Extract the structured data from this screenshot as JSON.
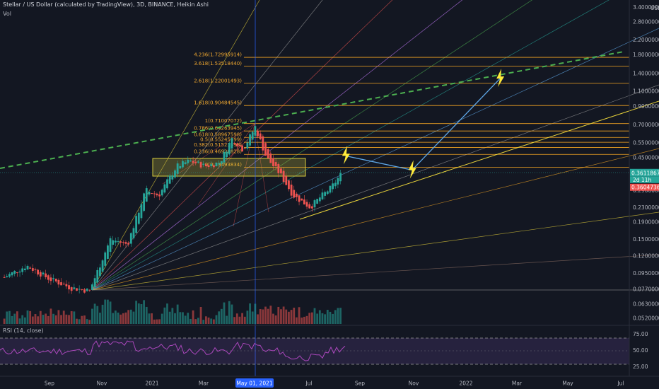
{
  "header": {
    "symbol_line": "Stellar / US Dollar (calculated by TradingView), 3D, BINANCE, Heikin Ashi",
    "indicator_vol": "Vol",
    "rsi_label": "RSI (14, close)"
  },
  "colors": {
    "background": "#131722",
    "bull": "#26a69a",
    "bear": "#ef5350",
    "fib_line": "#f5a623",
    "green_dash": "#4caf50",
    "rsi_line": "#9c27b0",
    "projection": "#5fa8e8",
    "bolt": "#ffeb3b",
    "vline": "#2962ff"
  },
  "price_axis": {
    "unit": "USD",
    "ticks": [
      "3.40000000",
      "2.80000000",
      "2.20000000",
      "1.80000000",
      "1.40000000",
      "1.10000000",
      "0.90000000",
      "0.70000000",
      "0.55000000",
      "0.45000000",
      "0.36118674",
      "0.29000000",
      "0.23000000",
      "0.19000000",
      "0.15000000",
      "0.12000000",
      "0.09500000",
      "0.07700000",
      "0.06300000",
      "0.05200000"
    ],
    "current_price": "0.36118674",
    "countdown": "2d 11h",
    "prev_price": "0.36047363"
  },
  "rsi_axis": {
    "ticks": [
      "75.00",
      "50.00",
      "25.00"
    ]
  },
  "time_axis": {
    "labels": [
      "Sep",
      "Nov",
      "2021",
      "Mar",
      "May 01, 2021",
      "Jul",
      "Sep",
      "Nov",
      "2022",
      "Mar",
      "May",
      "Jul"
    ],
    "highlight": "May 01, 2021"
  },
  "chart_data": {
    "type": "candlestick",
    "title": "Stellar / US Dollar (calculated by TradingView), 3D, BINANCE, Heikin Ashi",
    "ylabel": "USD",
    "y_scale": "log",
    "ylim": [
      0.048,
      3.6
    ],
    "x_range": [
      "2020-07-20",
      "2022-07-20"
    ],
    "fib_levels": [
      {
        "label": "4.236(1.72995914)",
        "value": 1.72995914
      },
      {
        "label": "3.618(1.53518440)",
        "value": 1.5351844
      },
      {
        "label": "2.618(1.22001493)",
        "value": 1.22001493
      },
      {
        "label": "1.618(0.90484545)",
        "value": 0.90484545
      },
      {
        "label": "1(0.71007072)",
        "value": 0.71007072
      },
      {
        "label": "0.786(0.64263945)",
        "value": 0.64263945
      },
      {
        "label": "0.618(0.58967598)",
        "value": 0.58967598
      },
      {
        "label": "0.5(0.55245599)",
        "value": 0.55245599
      },
      {
        "label": "0.382(0.51523598)",
        "value": 0.51523598
      },
      {
        "label": "0.236(0.46928828)",
        "value": 0.46928828
      },
      {
        "label": "0(0.39493834)",
        "value": 0.39493834
      }
    ],
    "price_path": [
      {
        "date": "2020-07-25",
        "close": 0.09
      },
      {
        "date": "2020-08-20",
        "close": 0.105
      },
      {
        "date": "2020-09-15",
        "close": 0.088
      },
      {
        "date": "2020-10-10",
        "close": 0.078
      },
      {
        "date": "2020-11-01",
        "close": 0.075
      },
      {
        "date": "2020-11-25",
        "close": 0.15
      },
      {
        "date": "2020-12-15",
        "close": 0.14
      },
      {
        "date": "2021-01-05",
        "close": 0.29
      },
      {
        "date": "2021-01-20",
        "close": 0.27
      },
      {
        "date": "2021-02-10",
        "close": 0.4
      },
      {
        "date": "2021-02-25",
        "close": 0.43
      },
      {
        "date": "2021-03-15",
        "close": 0.4
      },
      {
        "date": "2021-04-01",
        "close": 0.42
      },
      {
        "date": "2021-04-15",
        "close": 0.58
      },
      {
        "date": "2021-04-28",
        "close": 0.5
      },
      {
        "date": "2021-05-12",
        "close": 0.68
      },
      {
        "date": "2021-05-25",
        "close": 0.45
      },
      {
        "date": "2021-06-10",
        "close": 0.36
      },
      {
        "date": "2021-06-25",
        "close": 0.27
      },
      {
        "date": "2021-07-15",
        "close": 0.23
      },
      {
        "date": "2021-07-25",
        "close": 0.26
      },
      {
        "date": "2021-08-08",
        "close": 0.3
      },
      {
        "date": "2021-08-20",
        "close": 0.361
      }
    ],
    "projection": [
      {
        "date": "2021-08-25",
        "value": 0.46
      },
      {
        "date": "2021-11-10",
        "value": 0.38
      },
      {
        "date": "2022-02-20",
        "value": 1.3
      }
    ],
    "annotations": [
      "fib-retracement",
      "fib-fan",
      "trendlines",
      "range-box"
    ]
  }
}
